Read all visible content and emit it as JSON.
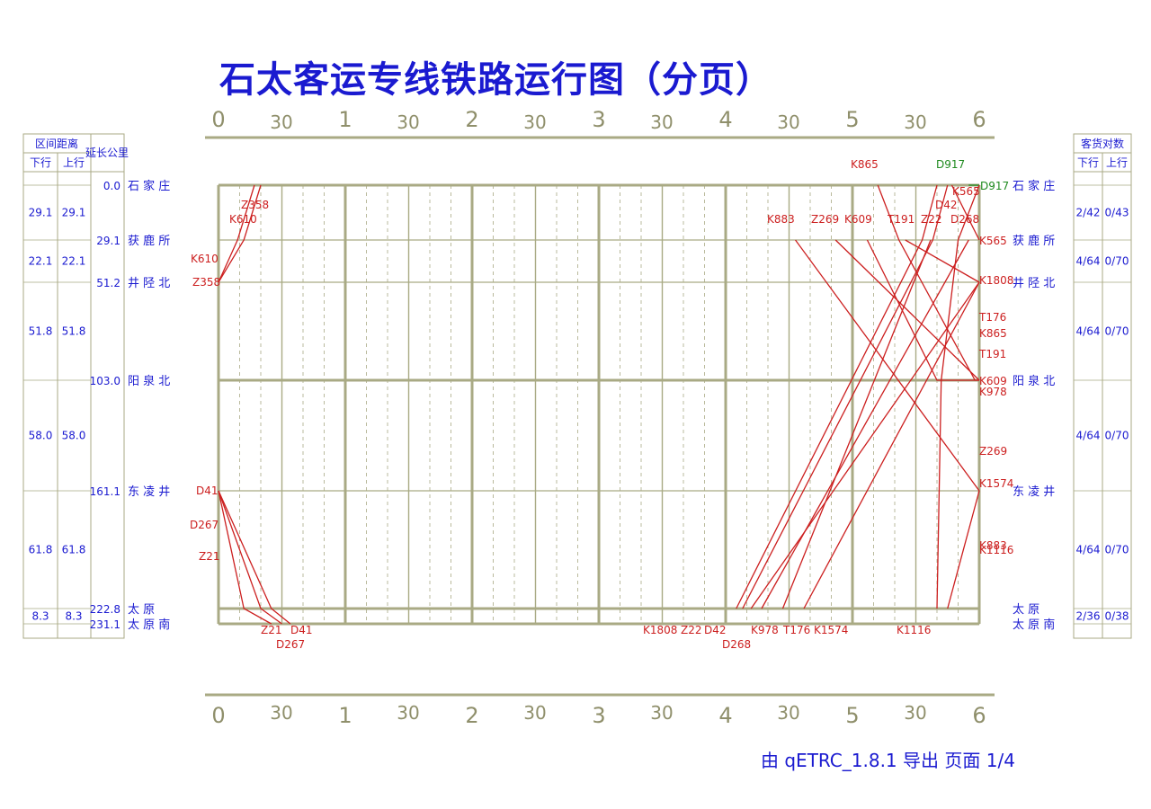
{
  "title": "石太客运专线铁路运行图（分页）",
  "footer": "由 qETRC_1.8.1 导出   页面 1/4",
  "colors": {
    "title": "#1a1ad0",
    "grid": "#a9aa84",
    "station_text": "#1a1ad0",
    "train_down": "#cc1f1f",
    "train_up": "#1f8a1f"
  },
  "time_axis": {
    "hour_labels": [
      "0",
      "1",
      "2",
      "3",
      "4",
      "5",
      "6"
    ],
    "half_label": "30"
  },
  "left_table": {
    "header_interval": "区间距离",
    "header_down": "下行",
    "header_up": "上行",
    "header_mileage": "延长公里",
    "intervals": [
      {
        "down": "29.1",
        "up": "29.1"
      },
      {
        "down": "22.1",
        "up": "22.1"
      },
      {
        "down": "51.8",
        "up": "51.8"
      },
      {
        "down": "58.0",
        "up": "58.0"
      },
      {
        "down": "61.8",
        "up": "61.8"
      },
      {
        "down": "8.3",
        "up": "8.3"
      }
    ]
  },
  "stations": [
    {
      "name": "石 家 庄",
      "mile": "0.0"
    },
    {
      "name": "获 鹿 所",
      "mile": "29.1"
    },
    {
      "name": "井 陉 北",
      "mile": "51.2"
    },
    {
      "name": "阳 泉 北",
      "mile": "103.0"
    },
    {
      "name": "东 凌 井",
      "mile": "161.1"
    },
    {
      "name": "太    原",
      "mile": "222.8"
    },
    {
      "name": "太 原 南",
      "mile": "231.1"
    }
  ],
  "right_table": {
    "header": "客货对数",
    "header_down": "下行",
    "header_up": "上行",
    "counts": [
      {
        "down": "2/42",
        "up": "0/43"
      },
      {
        "down": "4/64",
        "up": "0/70"
      },
      {
        "down": "4/64",
        "up": "0/70"
      },
      {
        "down": "4/64",
        "up": "0/70"
      },
      {
        "down": "4/64",
        "up": "0/70"
      },
      {
        "down": "2/36",
        "up": "0/38"
      }
    ]
  },
  "trains": [
    {
      "name": "K610",
      "color": "red",
      "points": [
        [
          "0:17",
          "石 家 庄"
        ],
        [
          "0:09",
          "获 鹿 所"
        ],
        [
          "0:00",
          "井 陉 北"
        ]
      ]
    },
    {
      "name": "Z358",
      "color": "red",
      "points": [
        [
          "0:20",
          "石 家 庄"
        ],
        [
          "0:12",
          "获 鹿 所"
        ],
        [
          "0:00",
          "井 陉 北"
        ]
      ]
    },
    {
      "name": "D41",
      "color": "red",
      "points": [
        [
          "0:00",
          "东 凌 井"
        ],
        [
          "0:25",
          "太    原"
        ],
        [
          "0:34",
          "太 原 南"
        ]
      ]
    },
    {
      "name": "D267",
      "color": "red",
      "points": [
        [
          "0:00",
          "东 凌 井"
        ],
        [
          "0:20",
          "太    原"
        ],
        [
          "0:30",
          "太 原 南"
        ]
      ]
    },
    {
      "name": "Z21",
      "color": "red",
      "points": [
        [
          "0:00",
          "东 凌 井"
        ],
        [
          "0:12",
          "太    原"
        ],
        [
          "0:25",
          "太 原 南"
        ]
      ]
    },
    {
      "name": "K865",
      "color": "red",
      "points": [
        [
          "5:12",
          "石 家 庄"
        ],
        [
          "5:22",
          "获 鹿 所"
        ],
        [
          "5:58",
          "阳 泉 北"
        ],
        [
          "6:00",
          "阳 泉 北"
        ]
      ]
    },
    {
      "name": "D917",
      "color": "green",
      "points": [
        [
          "5:55",
          "石 家 庄"
        ],
        [
          "6:00",
          "石 家 庄"
        ]
      ]
    },
    {
      "name": "K565",
      "color": "red",
      "points": [
        [
          "5:47",
          "石 家 庄"
        ],
        [
          "6:00",
          "获 鹿 所"
        ]
      ]
    },
    {
      "name": "D42",
      "color": "red",
      "points": [
        [
          "5:40",
          "太    原"
        ],
        [
          "5:42",
          "阳 泉 北"
        ],
        [
          "5:50",
          "获 鹿 所"
        ],
        [
          "6:00",
          "石 家 庄"
        ]
      ]
    },
    {
      "name": "D268",
      "color": "red",
      "points": [
        [
          "4:08",
          "太    原"
        ],
        [
          "5:38",
          "获 鹿 所"
        ],
        [
          "5:45",
          "石 家 庄"
        ]
      ]
    },
    {
      "name": "Z22",
      "color": "red",
      "points": [
        [
          "4:05",
          "太    原"
        ],
        [
          "5:33",
          "获 鹿 所"
        ],
        [
          "5:40",
          "石 家 庄"
        ]
      ]
    },
    {
      "name": "K883",
      "color": "red",
      "points": [
        [
          "4:33",
          "获 鹿 所"
        ],
        [
          "6:00",
          "东 凌 井"
        ]
      ]
    },
    {
      "name": "Z269",
      "color": "red",
      "points": [
        [
          "4:52",
          "获 鹿 所"
        ],
        [
          "6:00",
          "阳 泉 北"
        ]
      ]
    },
    {
      "name": "K609",
      "color": "red",
      "points": [
        [
          "5:07",
          "获 鹿 所"
        ],
        [
          "5:40",
          "阳 泉 北"
        ],
        [
          "6:00",
          "阳 泉 北"
        ]
      ]
    },
    {
      "name": "T191",
      "color": "red",
      "points": [
        [
          "5:25",
          "获 鹿 所"
        ],
        [
          "6:00",
          "井 陉 北"
        ]
      ]
    },
    {
      "name": "K1808",
      "color": "red",
      "points": [
        [
          "4:12",
          "太    原"
        ],
        [
          "6:00",
          "井 陉 北"
        ]
      ]
    },
    {
      "name": "T176",
      "color": "red",
      "points": [
        [
          "4:27",
          "太    原"
        ],
        [
          "5:37",
          "获 鹿 所"
        ]
      ]
    },
    {
      "name": "K978",
      "color": "red",
      "points": [
        [
          "4:17",
          "太    原"
        ],
        [
          "5:55",
          "获 鹿 所"
        ]
      ]
    },
    {
      "name": "K1574",
      "color": "red",
      "points": [
        [
          "4:37",
          "太    原"
        ],
        [
          "6:00",
          "井 陉 北"
        ]
      ]
    },
    {
      "name": "K1116",
      "color": "red",
      "points": [
        [
          "5:45",
          "太    原"
        ],
        [
          "6:00",
          "东 凌 井"
        ]
      ]
    }
  ],
  "train_labels": {
    "top_row": [
      "K883",
      "Z269",
      "K609",
      "T191",
      "Z22",
      "D268"
    ],
    "bottom_row": [
      "K1808",
      "Z22",
      "D42",
      "K978",
      "T176",
      "K1574",
      "K1116"
    ],
    "bottom_row_2": [
      "D268"
    ],
    "left_bottom": [
      "Z21",
      "D41",
      "D267"
    ]
  }
}
